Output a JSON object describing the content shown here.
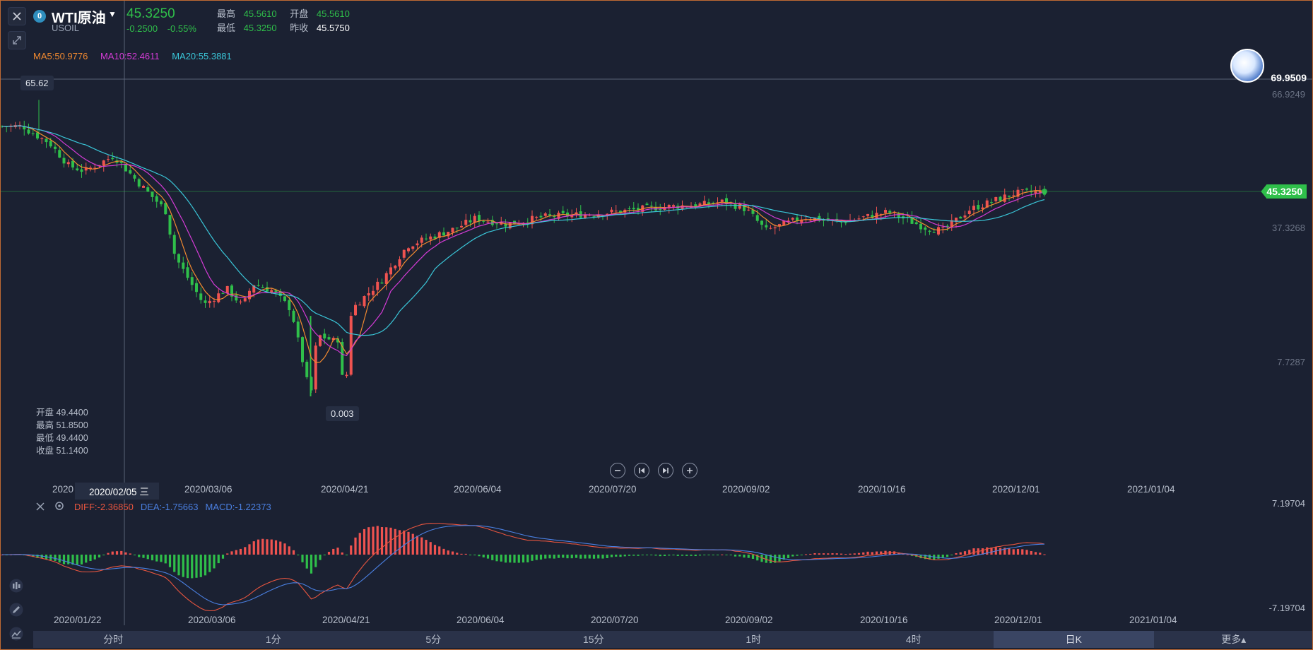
{
  "header": {
    "symbol_badge": "0",
    "symbol_name": "WTI原油",
    "symbol_code": "USOIL",
    "last_price": "45.3250",
    "change_abs": "-0.2500",
    "change_pct": "-0.55%",
    "stats": {
      "high_label": "最高",
      "high_value": "45.5610",
      "open_label": "开盘",
      "open_value": "45.5610",
      "low_label": "最低",
      "low_value": "45.3250",
      "prev_close_label": "昨收",
      "prev_close_value": "45.5750"
    }
  },
  "ma_legend": {
    "ma5": "MA5:50.9776",
    "ma10": "MA10:52.4611",
    "ma20": "MA20:55.3881"
  },
  "colors": {
    "up": "#ef5350",
    "down": "#2fbf4a",
    "ma5": "#f28a30",
    "ma10": "#d43bd6",
    "ma20": "#3ac6d8",
    "diff": "#e8553f",
    "dea": "#4a7fe0",
    "macd": "#4a7fe0",
    "background": "#1b2132"
  },
  "price_axis": {
    "crosshair_price": "69.9509",
    "labels": [
      "66.9249",
      "37.3268",
      "7.7287"
    ],
    "current_price": "45.3250"
  },
  "markers": {
    "high": "65.62",
    "low": "0.003"
  },
  "ohlc_box": {
    "open": "开盘 49.4400",
    "high": "最高 51.8500",
    "low": "最低 49.4400",
    "close": "收盘 51.1400"
  },
  "date_axis": {
    "crosshair_label": "2020/02/05 三",
    "partial_label": "2020",
    "labels": [
      "2020/03/06",
      "2020/04/21",
      "2020/06/04",
      "2020/07/20",
      "2020/09/02",
      "2020/10/16",
      "2020/12/01",
      "2021/01/04"
    ],
    "bottom_labels": [
      "2020/01/22",
      "2020/03/06",
      "2020/04/21",
      "2020/06/04",
      "2020/07/20",
      "2020/09/02",
      "2020/10/16",
      "2020/12/01",
      "2021/01/04"
    ]
  },
  "macd": {
    "diff": "DIFF:-2.36850",
    "dea": "DEA:-1.75663",
    "macd": "MACD:-1.22373",
    "scale_top": "7.19704",
    "scale_bottom": "-7.19704"
  },
  "tabs": [
    {
      "label": "分时",
      "active": false
    },
    {
      "label": "1分",
      "active": false
    },
    {
      "label": "5分",
      "active": false
    },
    {
      "label": "15分",
      "active": false
    },
    {
      "label": "1时",
      "active": false
    },
    {
      "label": "4时",
      "active": false
    },
    {
      "label": "日K",
      "active": true
    },
    {
      "label": "更多▴",
      "active": false
    }
  ],
  "icons": {
    "close": "close-icon",
    "expand": "expand-icon",
    "candles": "candles-icon",
    "pen": "pen-icon",
    "indicator": "indicator-icon",
    "settings": "settings-icon",
    "zoom_out": "zoom-out-icon",
    "prev": "prev-icon",
    "next": "next-icon",
    "zoom_in": "zoom-in-icon"
  },
  "chart_data": {
    "type": "candlestick",
    "title": "WTI原油",
    "ylim": [
      7.7287,
      66.9249
    ],
    "x_range": [
      "2020/01/22",
      "2021/01/04"
    ],
    "high_marker": 65.62,
    "low_marker": 0.003,
    "last": 45.325,
    "close_path": [
      [
        "2020/01/22",
        59.8
      ],
      [
        "2020/01/24",
        58.6
      ],
      [
        "2020/01/30",
        56.2
      ],
      [
        "2020/02/05",
        51.14
      ],
      [
        "2020/02/10",
        49.9
      ],
      [
        "2020/02/19",
        53.3
      ],
      [
        "2020/02/27",
        47.1
      ],
      [
        "2020/03/06",
        41.3
      ],
      [
        "2020/03/09",
        31.1
      ],
      [
        "2020/03/18",
        20.4
      ],
      [
        "2020/03/25",
        24.0
      ],
      [
        "2020/03/30",
        20.1
      ],
      [
        "2020/04/02",
        25.1
      ],
      [
        "2020/04/08",
        23.6
      ],
      [
        "2020/04/14",
        19.4
      ],
      [
        "2020/04/20",
        0.003
      ],
      [
        "2020/04/22",
        13.8
      ],
      [
        "2020/04/28",
        12.3
      ],
      [
        "2020/05/04",
        20.4
      ],
      [
        "2020/05/12",
        25.8
      ],
      [
        "2020/05/20",
        33.5
      ],
      [
        "2020/06/04",
        37.3
      ],
      [
        "2020/06/10",
        39.5
      ],
      [
        "2020/06/20",
        38.2
      ],
      [
        "2020/07/01",
        39.8
      ],
      [
        "2020/07/20",
        40.7
      ],
      [
        "2020/08/05",
        41.9
      ],
      [
        "2020/08/20",
        42.6
      ],
      [
        "2020/08/26",
        43.2
      ],
      [
        "2020/09/02",
        41.5
      ],
      [
        "2020/09/08",
        36.8
      ],
      [
        "2020/09/20",
        39.8
      ],
      [
        "2020/10/01",
        38.6
      ],
      [
        "2020/10/16",
        40.9
      ],
      [
        "2020/10/28",
        37.3
      ],
      [
        "2020/11/02",
        36.8
      ],
      [
        "2020/11/10",
        41.4
      ],
      [
        "2020/11/24",
        45.0
      ],
      [
        "2020/12/01",
        45.3
      ]
    ]
  }
}
